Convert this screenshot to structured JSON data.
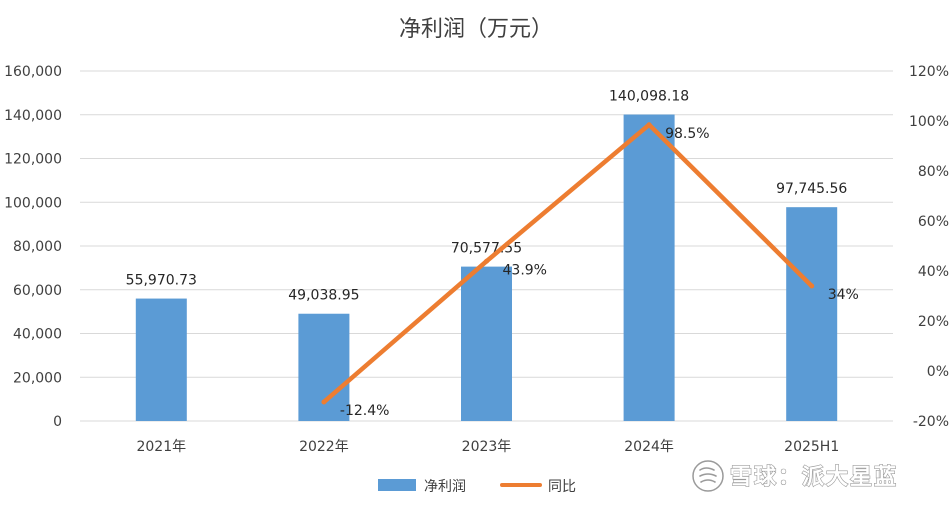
{
  "chart_data": {
    "type": "bar",
    "title": "净利润（万元）",
    "categories": [
      "2021年",
      "2022年",
      "2023年",
      "2024年",
      "2025H1"
    ],
    "series": [
      {
        "name": "净利润",
        "type": "bar",
        "axis": "left",
        "color": "#5B9BD5",
        "values": [
          55970.73,
          49038.95,
          70577.55,
          140098.18,
          97745.56
        ],
        "labels": [
          "55,970.73",
          "49,038.95",
          "70,577.55",
          "140,098.18",
          "97,745.56"
        ]
      },
      {
        "name": "同比",
        "type": "line",
        "axis": "right",
        "color": "#ED7D31",
        "values": [
          null,
          -12.4,
          43.9,
          98.5,
          34
        ],
        "labels": [
          "",
          "-12.4%",
          "43.9%",
          "98.5%",
          "34%"
        ]
      }
    ],
    "y_left": {
      "range": [
        0,
        160000
      ],
      "ticks": [
        0,
        20000,
        40000,
        60000,
        80000,
        100000,
        120000,
        140000,
        160000
      ],
      "tick_labels": [
        "0",
        "20,000",
        "40,000",
        "60,000",
        "80,000",
        "100,000",
        "120,000",
        "140,000",
        "160,000"
      ]
    },
    "y_right": {
      "range": [
        -20,
        120
      ],
      "ticks": [
        -20,
        0,
        20,
        40,
        60,
        80,
        100,
        120
      ],
      "tick_labels": [
        "-20%",
        "0%",
        "20%",
        "40%",
        "60%",
        "80%",
        "100%",
        "120%"
      ]
    },
    "grid": true,
    "legend_position": "bottom"
  },
  "watermark": {
    "text": "雪球：派大星蓝",
    "icon": "snowball-logo-icon"
  }
}
